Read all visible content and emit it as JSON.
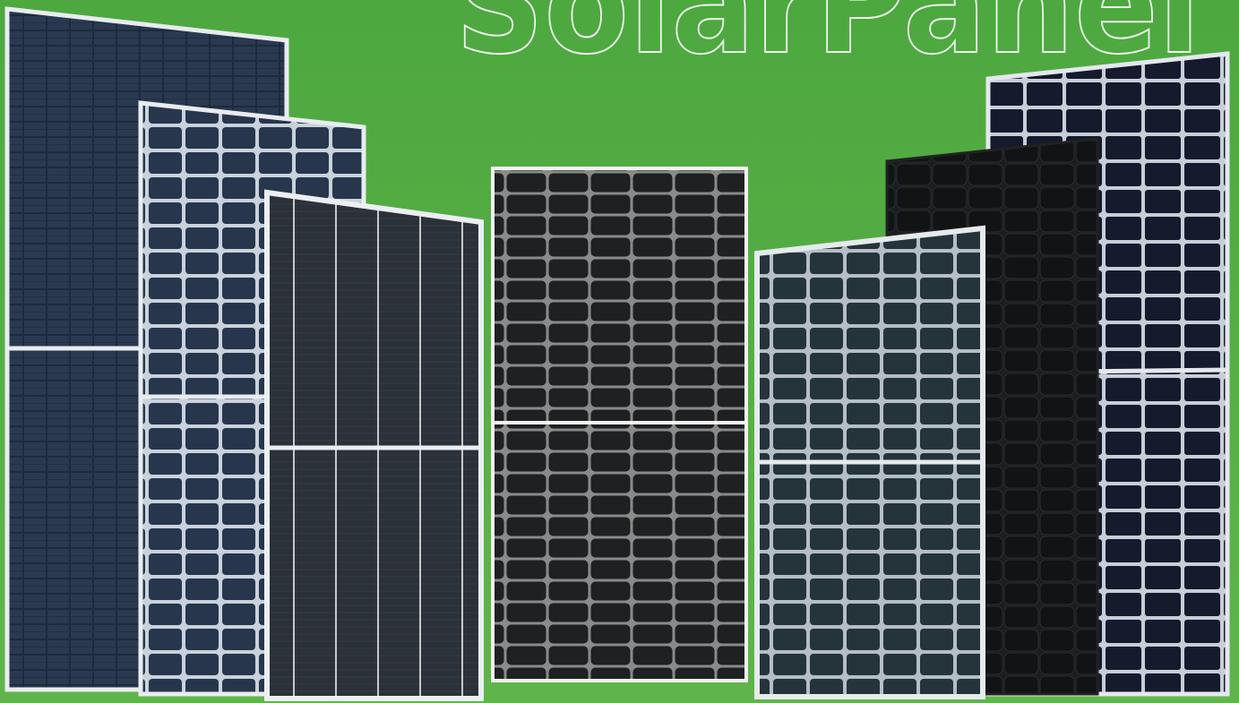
{
  "title": "SolarPanel"
}
